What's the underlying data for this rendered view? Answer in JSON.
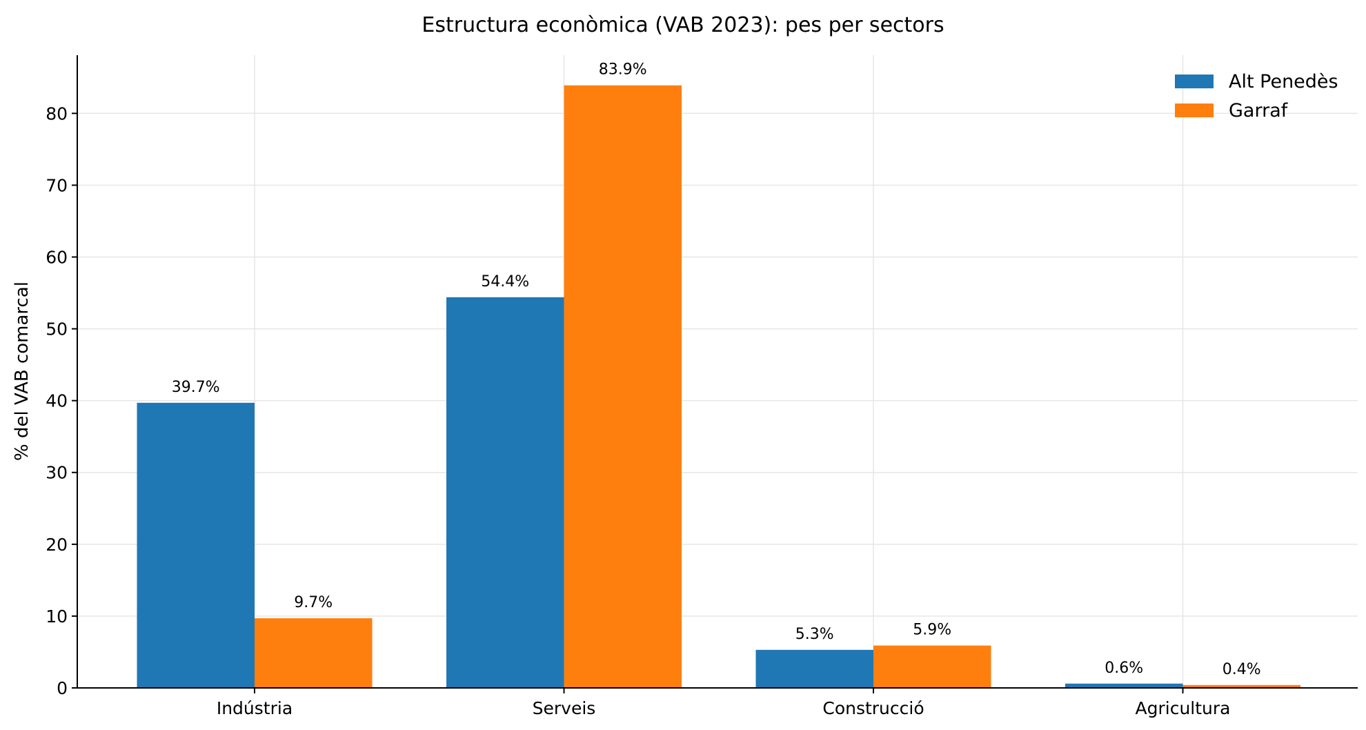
{
  "chart_data": {
    "type": "bar",
    "title": "Estructura econòmica (VAB 2023): pes per sectors",
    "xlabel": "",
    "ylabel": "% del VAB comarcal",
    "categories": [
      "Indústria",
      "Serveis",
      "Construcció",
      "Agricultura"
    ],
    "series": [
      {
        "name": "Alt Penedès",
        "color": "#1f77b4",
        "values": [
          39.7,
          54.4,
          5.3,
          0.6
        ],
        "labels": [
          "39.7%",
          "54.4%",
          "5.3%",
          "0.6%"
        ]
      },
      {
        "name": "Garraf",
        "color": "#ff7f0e",
        "values": [
          9.7,
          83.9,
          5.9,
          0.4
        ],
        "labels": [
          "9.7%",
          "83.9%",
          "5.9%",
          "0.4%"
        ]
      }
    ],
    "ylim": [
      0,
      88.1
    ],
    "yticks": [
      0,
      10,
      20,
      30,
      40,
      50,
      60,
      70,
      80
    ],
    "grid": true,
    "legend": "top-right"
  }
}
